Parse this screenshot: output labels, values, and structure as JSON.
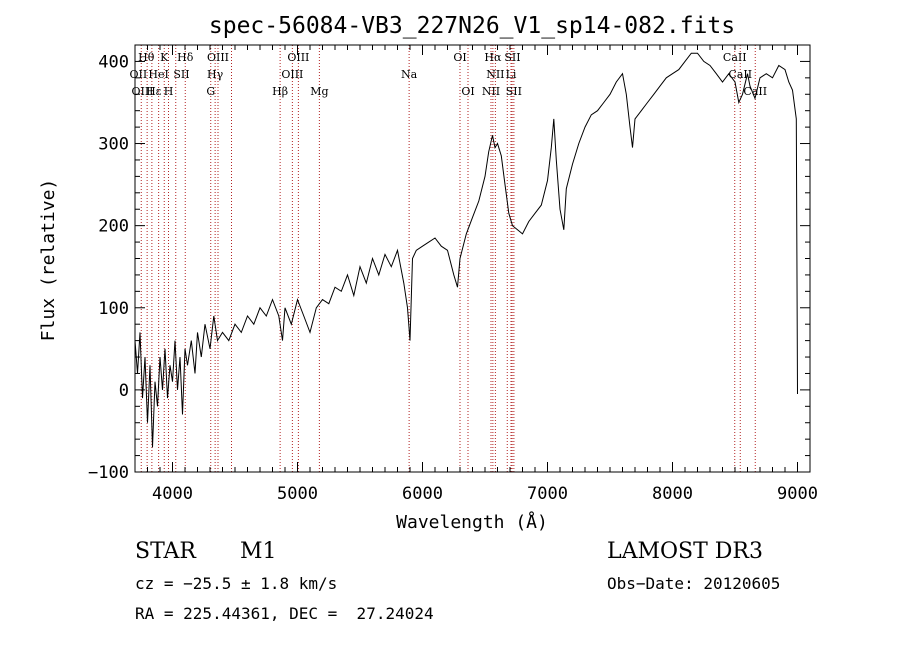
{
  "chart_data": {
    "type": "line",
    "title": "spec-56084-VB3_227N26_V1_sp14-082.fits",
    "xlabel": "Wavelength (Å)",
    "ylabel": "Flux (relative)",
    "xlim": [
      3700,
      9100
    ],
    "ylim": [
      -100,
      420
    ],
    "x_ticks": [
      {
        "value": 4000,
        "label": "4000"
      },
      {
        "value": 5000,
        "label": "5000"
      },
      {
        "value": 6000,
        "label": "6000"
      },
      {
        "value": 7000,
        "label": "7000"
      },
      {
        "value": 8000,
        "label": "8000"
      },
      {
        "value": 9000,
        "label": "9000"
      }
    ],
    "y_ticks": [
      {
        "value": -100,
        "label": "−100"
      },
      {
        "value": 0,
        "label": "0"
      },
      {
        "value": 100,
        "label": "100"
      },
      {
        "value": 200,
        "label": "200"
      },
      {
        "value": 300,
        "label": "300"
      },
      {
        "value": 400,
        "label": "400"
      }
    ],
    "series": [
      {
        "name": "flux",
        "color": "#000000",
        "points": [
          [
            3700,
            60
          ],
          [
            3720,
            20
          ],
          [
            3740,
            70
          ],
          [
            3760,
            -10
          ],
          [
            3780,
            40
          ],
          [
            3800,
            -40
          ],
          [
            3820,
            30
          ],
          [
            3840,
            -70
          ],
          [
            3860,
            10
          ],
          [
            3880,
            -20
          ],
          [
            3900,
            40
          ],
          [
            3920,
            0
          ],
          [
            3940,
            50
          ],
          [
            3960,
            -10
          ],
          [
            3980,
            30
          ],
          [
            4000,
            10
          ],
          [
            4020,
            60
          ],
          [
            4040,
            0
          ],
          [
            4060,
            40
          ],
          [
            4080,
            -30
          ],
          [
            4100,
            50
          ],
          [
            4120,
            30
          ],
          [
            4150,
            60
          ],
          [
            4180,
            20
          ],
          [
            4200,
            70
          ],
          [
            4230,
            40
          ],
          [
            4260,
            80
          ],
          [
            4300,
            50
          ],
          [
            4330,
            90
          ],
          [
            4360,
            60
          ],
          [
            4400,
            70
          ],
          [
            4450,
            60
          ],
          [
            4500,
            80
          ],
          [
            4550,
            70
          ],
          [
            4600,
            90
          ],
          [
            4650,
            80
          ],
          [
            4700,
            100
          ],
          [
            4750,
            90
          ],
          [
            4800,
            110
          ],
          [
            4850,
            90
          ],
          [
            4880,
            60
          ],
          [
            4900,
            100
          ],
          [
            4950,
            80
          ],
          [
            5000,
            110
          ],
          [
            5050,
            90
          ],
          [
            5100,
            70
          ],
          [
            5150,
            100
          ],
          [
            5200,
            110
          ],
          [
            5250,
            105
          ],
          [
            5300,
            125
          ],
          [
            5350,
            120
          ],
          [
            5400,
            140
          ],
          [
            5450,
            115
          ],
          [
            5500,
            150
          ],
          [
            5550,
            130
          ],
          [
            5600,
            160
          ],
          [
            5650,
            140
          ],
          [
            5700,
            165
          ],
          [
            5750,
            150
          ],
          [
            5800,
            170
          ],
          [
            5850,
            130
          ],
          [
            5880,
            100
          ],
          [
            5900,
            60
          ],
          [
            5920,
            160
          ],
          [
            5950,
            170
          ],
          [
            6000,
            175
          ],
          [
            6050,
            180
          ],
          [
            6100,
            185
          ],
          [
            6150,
            175
          ],
          [
            6200,
            170
          ],
          [
            6250,
            140
          ],
          [
            6280,
            125
          ],
          [
            6300,
            160
          ],
          [
            6350,
            190
          ],
          [
            6400,
            210
          ],
          [
            6450,
            230
          ],
          [
            6500,
            260
          ],
          [
            6530,
            290
          ],
          [
            6560,
            310
          ],
          [
            6580,
            295
          ],
          [
            6600,
            300
          ],
          [
            6630,
            285
          ],
          [
            6660,
            250
          ],
          [
            6690,
            215
          ],
          [
            6720,
            200
          ],
          [
            6760,
            195
          ],
          [
            6800,
            190
          ],
          [
            6850,
            205
          ],
          [
            6900,
            215
          ],
          [
            6950,
            225
          ],
          [
            7000,
            255
          ],
          [
            7030,
            295
          ],
          [
            7050,
            330
          ],
          [
            7070,
            280
          ],
          [
            7100,
            220
          ],
          [
            7130,
            195
          ],
          [
            7150,
            245
          ],
          [
            7200,
            275
          ],
          [
            7250,
            300
          ],
          [
            7300,
            320
          ],
          [
            7350,
            335
          ],
          [
            7400,
            340
          ],
          [
            7450,
            350
          ],
          [
            7500,
            360
          ],
          [
            7550,
            375
          ],
          [
            7600,
            385
          ],
          [
            7630,
            360
          ],
          [
            7660,
            320
          ],
          [
            7680,
            295
          ],
          [
            7700,
            330
          ],
          [
            7750,
            340
          ],
          [
            7800,
            350
          ],
          [
            7850,
            360
          ],
          [
            7900,
            370
          ],
          [
            7950,
            380
          ],
          [
            8000,
            385
          ],
          [
            8050,
            390
          ],
          [
            8100,
            400
          ],
          [
            8150,
            410
          ],
          [
            8200,
            410
          ],
          [
            8250,
            400
          ],
          [
            8300,
            395
          ],
          [
            8350,
            385
          ],
          [
            8400,
            375
          ],
          [
            8450,
            385
          ],
          [
            8500,
            375
          ],
          [
            8530,
            350
          ],
          [
            8560,
            360
          ],
          [
            8600,
            385
          ],
          [
            8620,
            370
          ],
          [
            8660,
            355
          ],
          [
            8700,
            380
          ],
          [
            8750,
            385
          ],
          [
            8800,
            380
          ],
          [
            8850,
            395
          ],
          [
            8900,
            390
          ],
          [
            8930,
            375
          ],
          [
            8960,
            365
          ],
          [
            8990,
            330
          ],
          [
            9000,
            -5
          ]
        ]
      }
    ],
    "line_markers": {
      "color": "#b22222",
      "wavelengths": [
        3750,
        3797,
        3835,
        3889,
        3934,
        3968,
        4026,
        4102,
        4306,
        4341,
        4364,
        4472,
        4861,
        4959,
        5007,
        5175,
        5893,
        6300,
        6364,
        6548,
        6563,
        6583,
        6678,
        6708,
        6717,
        6731,
        8498,
        8542,
        8662
      ],
      "labels": [
        {
          "text": "Hθ",
          "x": 3790,
          "row": 0
        },
        {
          "text": "K",
          "x": 3934,
          "row": 0
        },
        {
          "text": "Hδ",
          "x": 4102,
          "row": 0
        },
        {
          "text": "OIII",
          "x": 4364,
          "row": 0
        },
        {
          "text": "OIII",
          "x": 5007,
          "row": 0
        },
        {
          "text": "OI",
          "x": 6300,
          "row": 0
        },
        {
          "text": "Hα",
          "x": 6563,
          "row": 0
        },
        {
          "text": "SII",
          "x": 6720,
          "row": 0
        },
        {
          "text": "CaII",
          "x": 8498,
          "row": 0
        },
        {
          "text": "OII",
          "x": 3727,
          "row": 1
        },
        {
          "text": "HeI",
          "x": 3889,
          "row": 1
        },
        {
          "text": "SII",
          "x": 4072,
          "row": 1
        },
        {
          "text": "Hγ",
          "x": 4341,
          "row": 1
        },
        {
          "text": "OIII",
          "x": 4959,
          "row": 1
        },
        {
          "text": "Na",
          "x": 5893,
          "row": 1
        },
        {
          "text": "NII",
          "x": 6583,
          "row": 1
        },
        {
          "text": "Li",
          "x": 6708,
          "row": 1
        },
        {
          "text": "CaII",
          "x": 8542,
          "row": 1
        },
        {
          "text": "OIII",
          "x": 3760,
          "row": 2
        },
        {
          "text": "Hε",
          "x": 3850,
          "row": 2
        },
        {
          "text": "H",
          "x": 3968,
          "row": 2
        },
        {
          "text": "G",
          "x": 4306,
          "row": 2
        },
        {
          "text": "Hβ",
          "x": 4861,
          "row": 2
        },
        {
          "text": "Mg",
          "x": 5175,
          "row": 2
        },
        {
          "text": "OI",
          "x": 6364,
          "row": 2
        },
        {
          "text": "NII",
          "x": 6548,
          "row": 2
        },
        {
          "text": "SII",
          "x": 6731,
          "row": 2
        },
        {
          "text": "CaII",
          "x": 8662,
          "row": 2
        }
      ]
    }
  },
  "info": {
    "object_class": "STAR",
    "subclass": "M1",
    "survey": "LAMOST DR3",
    "redshift": "cz = −25.5 ± 1.8 km/s",
    "obs_date": "Obs−Date: 20120605",
    "coords": "RA = 225.44361, DEC =  27.24024"
  }
}
